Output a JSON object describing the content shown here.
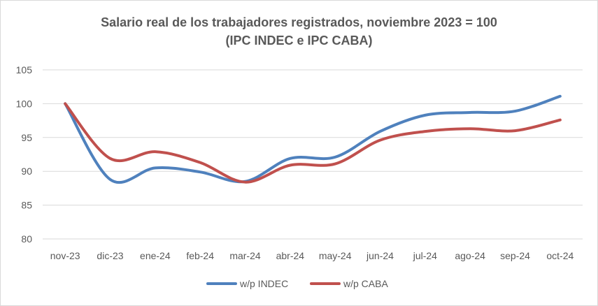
{
  "chart_data": {
    "type": "line",
    "title": "Salario real de los trabajadores registrados, noviembre 2023 = 100",
    "subtitle": "(IPC INDEC e IPC CABA)",
    "categories": [
      "nov-23",
      "dic-23",
      "ene-24",
      "feb-24",
      "mar-24",
      "abr-24",
      "may-24",
      "jun-24",
      "jul-24",
      "ago-24",
      "sep-24",
      "oct-24"
    ],
    "y_ticks": [
      "80",
      "85",
      "90",
      "95",
      "100",
      "105"
    ],
    "ylim": [
      80,
      105
    ],
    "grid": "horizontal",
    "legend_position": "bottom",
    "series": [
      {
        "name": "w/p INDEC",
        "color": "#4f81bd",
        "values": [
          100,
          88.8,
          90.5,
          89.9,
          88.5,
          91.9,
          92.1,
          95.9,
          98.3,
          98.7,
          98.9,
          101.1
        ]
      },
      {
        "name": "w/p CABA",
        "color": "#c0504d",
        "values": [
          100,
          91.9,
          92.9,
          91.3,
          88.4,
          90.9,
          91.1,
          94.6,
          95.9,
          96.3,
          96.0,
          97.6
        ]
      }
    ]
  }
}
